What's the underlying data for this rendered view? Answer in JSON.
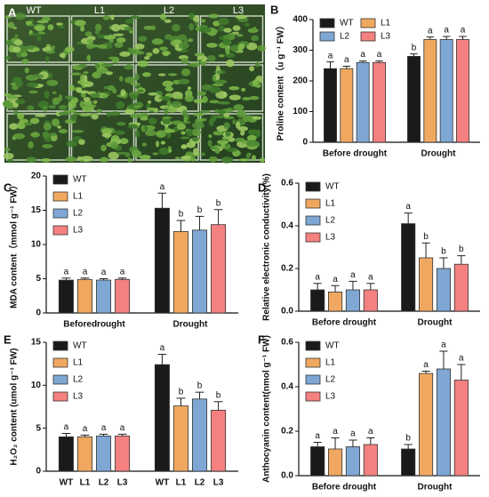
{
  "photo": {
    "panel": "A",
    "columns": [
      "WT",
      "L1",
      "L2",
      "L3"
    ]
  },
  "chart_data": [
    {
      "type": "bar",
      "panel": "B",
      "ylabel": "Proline content（u g⁻¹ FW）",
      "categories": [
        "Before drought",
        "Drought"
      ],
      "ylim": [
        0,
        400
      ],
      "yticks": [
        0,
        100,
        200,
        300,
        400
      ],
      "legend": "upper left",
      "legend_columns": 2,
      "series": [
        {
          "name": "WT",
          "color": "#1a1a1a",
          "values": [
            240,
            280
          ],
          "errors": [
            22,
            8
          ],
          "letters": [
            "a",
            "b"
          ]
        },
        {
          "name": "L1",
          "color": "#f0a860",
          "values": [
            240,
            335
          ],
          "errors": [
            8,
            8
          ],
          "letters": [
            "a",
            "a"
          ]
        },
        {
          "name": "L2",
          "color": "#7fa7d4",
          "values": [
            260,
            335
          ],
          "errors": [
            5,
            10
          ],
          "letters": [
            "a",
            "a"
          ]
        },
        {
          "name": "L3",
          "color": "#f58080",
          "values": [
            260,
            335
          ],
          "errors": [
            5,
            10
          ],
          "letters": [
            "a",
            "a"
          ]
        }
      ]
    },
    {
      "type": "bar",
      "panel": "C",
      "ylabel": "MDA content（mmol g⁻¹ FW）",
      "categories": [
        "Beforedrought",
        "Drought"
      ],
      "ylim": [
        0,
        20
      ],
      "yticks": [
        0,
        5,
        10,
        15,
        20
      ],
      "legend": "upper left",
      "legend_columns": 1,
      "series": [
        {
          "name": "WT",
          "color": "#1a1a1a",
          "values": [
            4.8,
            15.3
          ],
          "errors": [
            0.3,
            2.2
          ],
          "letters": [
            "a",
            "a"
          ]
        },
        {
          "name": "L1",
          "color": "#f0a860",
          "values": [
            4.9,
            11.9
          ],
          "errors": [
            0.2,
            1.6
          ],
          "letters": [
            "a",
            "b"
          ]
        },
        {
          "name": "L2",
          "color": "#7fa7d4",
          "values": [
            4.8,
            12.1
          ],
          "errors": [
            0.2,
            2.0
          ],
          "letters": [
            "a",
            "b"
          ]
        },
        {
          "name": "L3",
          "color": "#f58080",
          "values": [
            4.9,
            12.9
          ],
          "errors": [
            0.2,
            2.2
          ],
          "letters": [
            "a",
            "b"
          ]
        }
      ]
    },
    {
      "type": "bar",
      "panel": "D",
      "ylabel": "Relative electronic conductivity(%)",
      "categories": [
        "Before drought",
        "Drought"
      ],
      "ylim": [
        0,
        0.6
      ],
      "yticks": [
        {
          "value": 0,
          "label": "0.0"
        },
        0.2,
        0.4,
        0.6
      ],
      "legend": "upper left",
      "legend_columns": 1,
      "series": [
        {
          "name": "WT",
          "color": "#1a1a1a",
          "values": [
            0.1,
            0.41
          ],
          "errors": [
            0.03,
            0.05
          ],
          "letters": [
            "a",
            "a"
          ]
        },
        {
          "name": "L1",
          "color": "#f0a860",
          "values": [
            0.09,
            0.25
          ],
          "errors": [
            0.03,
            0.07
          ],
          "letters": [
            "a",
            "b"
          ]
        },
        {
          "name": "L2",
          "color": "#7fa7d4",
          "values": [
            0.1,
            0.2
          ],
          "errors": [
            0.04,
            0.05
          ],
          "letters": [
            "a",
            "b"
          ]
        },
        {
          "name": "L3",
          "color": "#f58080",
          "values": [
            0.1,
            0.22
          ],
          "errors": [
            0.03,
            0.04
          ],
          "letters": [
            "a",
            "b"
          ]
        }
      ]
    },
    {
      "type": "bar",
      "panel": "E",
      "ylabel": "H₂O₂ content (umol g⁻¹ FW)",
      "categories": [
        null,
        null
      ],
      "bar_labels": true,
      "ylim": [
        0,
        15
      ],
      "yticks": [
        0,
        5,
        10,
        15
      ],
      "legend": "upper left",
      "legend_columns": 1,
      "series": [
        {
          "name": "WT",
          "color": "#1a1a1a",
          "values": [
            4.0,
            12.4
          ],
          "errors": [
            0.4,
            1.2
          ],
          "letters": [
            "a",
            "a"
          ]
        },
        {
          "name": "L1",
          "color": "#f0a860",
          "values": [
            4.0,
            7.6
          ],
          "errors": [
            0.2,
            0.9
          ],
          "letters": [
            "a",
            "b"
          ]
        },
        {
          "name": "L2",
          "color": "#7fa7d4",
          "values": [
            4.1,
            8.4
          ],
          "errors": [
            0.2,
            0.8
          ],
          "letters": [
            "a",
            "b"
          ]
        },
        {
          "name": "L3",
          "color": "#f58080",
          "values": [
            4.1,
            7.1
          ],
          "errors": [
            0.2,
            1.0
          ],
          "letters": [
            "a",
            "b"
          ]
        }
      ]
    },
    {
      "type": "bar",
      "panel": "F",
      "ylabel": "Anthocyanin content(nmol g⁻¹ FW)",
      "categories": [
        "Before drought",
        "Drought"
      ],
      "ylim": [
        0,
        0.6
      ],
      "yticks": [
        {
          "value": 0,
          "label": "0.0"
        },
        0.2,
        0.4,
        0.6
      ],
      "legend": "upper left",
      "legend_columns": 1,
      "series": [
        {
          "name": "WT",
          "color": "#1a1a1a",
          "values": [
            0.13,
            0.12
          ],
          "errors": [
            0.02,
            0.02
          ],
          "letters": [
            "a",
            "b"
          ]
        },
        {
          "name": "L1",
          "color": "#f0a860",
          "values": [
            0.12,
            0.46
          ],
          "errors": [
            0.05,
            0.01
          ],
          "letters": [
            "a",
            "a"
          ]
        },
        {
          "name": "L2",
          "color": "#7fa7d4",
          "values": [
            0.13,
            0.48
          ],
          "errors": [
            0.03,
            0.08
          ],
          "letters": [
            "a",
            "a"
          ]
        },
        {
          "name": "L3",
          "color": "#f58080",
          "values": [
            0.14,
            0.43
          ],
          "errors": [
            0.03,
            0.07
          ],
          "letters": [
            "a",
            "a"
          ]
        }
      ]
    }
  ]
}
